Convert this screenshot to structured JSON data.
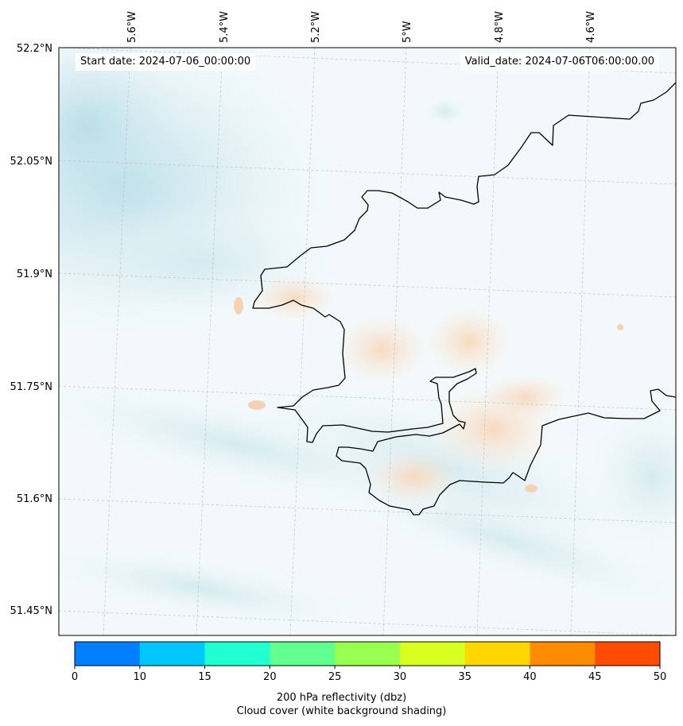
{
  "info": {
    "start_date": "Start date: 2024-07-06_00:00:00",
    "valid_date": "Valid_date: 2024-07-06T06:00:00.00"
  },
  "lat_labels": [
    "52.2°N",
    "52.05°N",
    "51.9°N",
    "51.75°N",
    "51.6°N",
    "51.45°N"
  ],
  "lon_labels": [
    "5.6°W",
    "5.4°W",
    "5.2°W",
    "5°W",
    "4.8°W",
    "4.6°W"
  ],
  "colorbar": {
    "colors": [
      "#0080ff",
      "#00c8ff",
      "#20ffd0",
      "#60ff90",
      "#98ff50",
      "#d8ff20",
      "#ffd800",
      "#ff8c00",
      "#ff4c00"
    ],
    "ticks": [
      "0",
      "10",
      "15",
      "20",
      "25",
      "30",
      "35",
      "40",
      "45",
      "50"
    ],
    "label_line1": "200 hPa reflectivity (dbz)",
    "label_line2": "Cloud cover (white background shading)"
  },
  "colors": {
    "cloud_shading": "#c6e3ea",
    "reflectivity_shading": "#f5c9a0",
    "coastline": "#000000"
  }
}
